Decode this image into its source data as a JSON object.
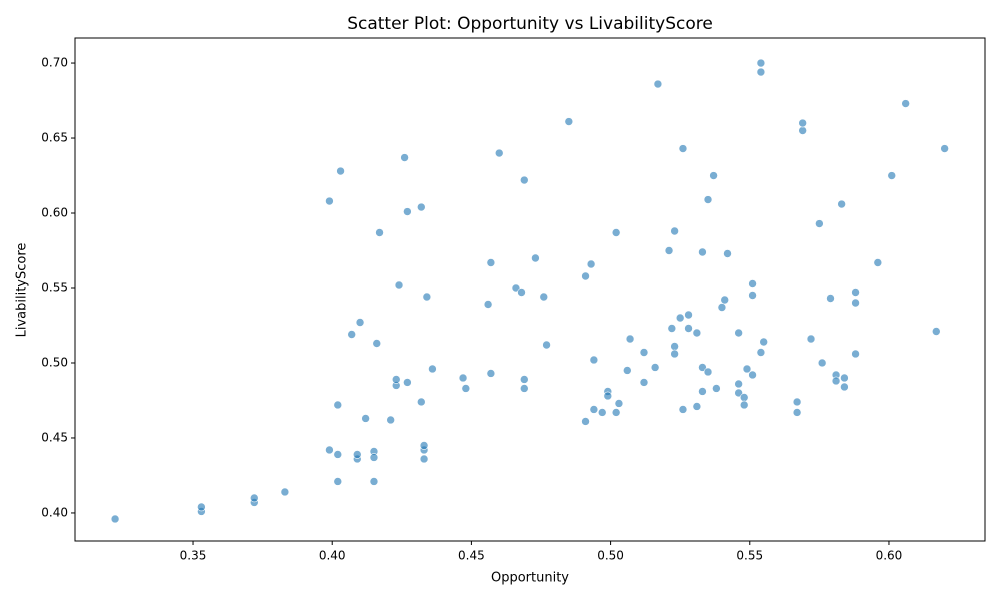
{
  "chart_data": {
    "type": "scatter",
    "title": "Scatter Plot: Opportunity vs LivabilityScore",
    "xlabel": "Opportunity",
    "ylabel": "LivabilityScore",
    "color": "#1f77b4",
    "xlim": [
      0.3076,
      0.6345
    ],
    "ylim": [
      0.3813,
      0.7167
    ],
    "xticks": [
      0.35,
      {
        "value": 0.4,
        "label": "0.40"
      },
      0.45,
      {
        "value": 0.5,
        "label": "0.50"
      },
      0.55,
      {
        "value": 0.6,
        "label": "0.60"
      }
    ],
    "yticks": [
      {
        "value": 0.4,
        "label": "0.40"
      },
      0.45,
      {
        "value": 0.5,
        "label": "0.50"
      },
      0.55,
      {
        "value": 0.6,
        "label": "0.60"
      },
      0.65,
      {
        "value": 0.7,
        "label": "0.70"
      }
    ],
    "x": [
      0.322,
      0.353,
      0.353,
      0.372,
      0.372,
      0.383,
      0.399,
      0.399,
      0.402,
      0.402,
      0.402,
      0.403,
      0.407,
      0.409,
      0.409,
      0.41,
      0.412,
      0.415,
      0.415,
      0.415,
      0.416,
      0.417,
      0.421,
      0.423,
      0.423,
      0.424,
      0.426,
      0.427,
      0.427,
      0.432,
      0.432,
      0.433,
      0.433,
      0.433,
      0.434,
      0.436,
      0.447,
      0.448,
      0.456,
      0.457,
      0.457,
      0.46,
      0.466,
      0.468,
      0.469,
      0.469,
      0.469,
      0.473,
      0.476,
      0.477,
      0.485,
      0.491,
      0.491,
      0.493,
      0.494,
      0.494,
      0.497,
      0.499,
      0.499,
      0.502,
      0.502,
      0.503,
      0.506,
      0.507,
      0.512,
      0.512,
      0.516,
      0.517,
      0.521,
      0.522,
      0.523,
      0.523,
      0.523,
      0.525,
      0.526,
      0.526,
      0.528,
      0.528,
      0.531,
      0.531,
      0.533,
      0.533,
      0.533,
      0.535,
      0.535,
      0.537,
      0.538,
      0.54,
      0.541,
      0.542,
      0.546,
      0.546,
      0.546,
      0.548,
      0.548,
      0.549,
      0.551,
      0.551,
      0.551,
      0.554,
      0.554,
      0.555,
      0.554,
      0.567,
      0.567,
      0.569,
      0.569,
      0.572,
      0.575,
      0.576,
      0.579,
      0.581,
      0.581,
      0.583,
      0.584,
      0.584,
      0.588,
      0.588,
      0.588,
      0.596,
      0.601,
      0.606,
      0.617,
      0.62
    ],
    "values": [
      0.396,
      0.401,
      0.404,
      0.407,
      0.41,
      0.414,
      0.442,
      0.608,
      0.439,
      0.472,
      0.421,
      0.628,
      0.519,
      0.436,
      0.439,
      0.527,
      0.463,
      0.441,
      0.437,
      0.421,
      0.513,
      0.587,
      0.462,
      0.485,
      0.489,
      0.552,
      0.637,
      0.601,
      0.487,
      0.474,
      0.604,
      0.436,
      0.442,
      0.445,
      0.544,
      0.496,
      0.49,
      0.483,
      0.539,
      0.567,
      0.493,
      0.64,
      0.55,
      0.547,
      0.622,
      0.489,
      0.483,
      0.57,
      0.544,
      0.512,
      0.661,
      0.558,
      0.461,
      0.566,
      0.502,
      0.469,
      0.467,
      0.481,
      0.478,
      0.587,
      0.467,
      0.473,
      0.495,
      0.516,
      0.507,
      0.487,
      0.497,
      0.686,
      0.575,
      0.523,
      0.588,
      0.511,
      0.506,
      0.53,
      0.643,
      0.469,
      0.532,
      0.523,
      0.52,
      0.471,
      0.574,
      0.497,
      0.481,
      0.609,
      0.494,
      0.625,
      0.483,
      0.537,
      0.542,
      0.573,
      0.52,
      0.486,
      0.48,
      0.477,
      0.472,
      0.496,
      0.553,
      0.545,
      0.492,
      0.7,
      0.694,
      0.514,
      0.507,
      0.474,
      0.467,
      0.655,
      0.66,
      0.516,
      0.593,
      0.5,
      0.543,
      0.492,
      0.488,
      0.606,
      0.49,
      0.484,
      0.547,
      0.54,
      0.506,
      0.567,
      0.625,
      0.673,
      0.521,
      0.643
    ]
  }
}
